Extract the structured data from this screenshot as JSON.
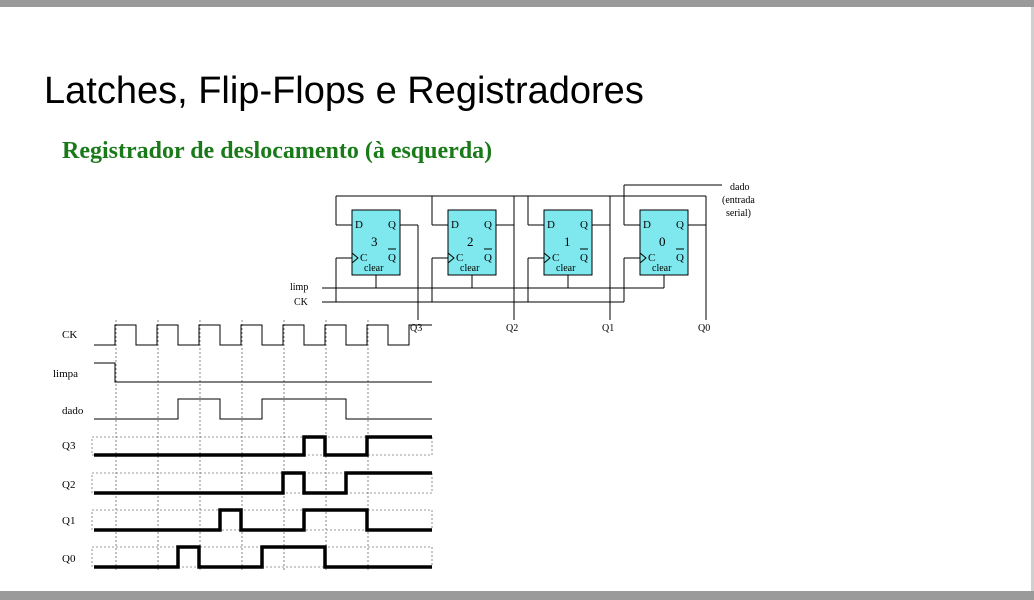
{
  "slide": {
    "title": "Latches, Flip-Flops e Registradores",
    "subtitle": "Registrador de deslocamento (à esquerda)"
  },
  "circuit": {
    "flipflops": [
      {
        "index": "3",
        "d": "D",
        "q": "Q",
        "c": "C",
        "qbar": "Q",
        "clear": "clear",
        "output": "Q3"
      },
      {
        "index": "2",
        "d": "D",
        "q": "Q",
        "c": "C",
        "qbar": "Q",
        "clear": "clear",
        "output": "Q2"
      },
      {
        "index": "1",
        "d": "D",
        "q": "Q",
        "c": "C",
        "qbar": "Q",
        "clear": "clear",
        "output": "Q1"
      },
      {
        "index": "0",
        "d": "D",
        "q": "Q",
        "c": "C",
        "qbar": "Q",
        "clear": "clear",
        "output": "Q0"
      }
    ],
    "input_label_line1": "dado",
    "input_label_line2": "(entrada",
    "input_label_line3": "serial)",
    "clear_input": "limp",
    "clock_input": "CK",
    "ff_fill_color": "#7fe8ee"
  },
  "timing": {
    "signals": [
      {
        "name": "CK",
        "levels": [
          0,
          1,
          0,
          1,
          0,
          1,
          0,
          1,
          0,
          1,
          0,
          1,
          0,
          1,
          0,
          1
        ]
      },
      {
        "name": "limpa",
        "levels": [
          1,
          0,
          0,
          0,
          0,
          0,
          0,
          0,
          0,
          0,
          0,
          0,
          0,
          0,
          0,
          0
        ]
      },
      {
        "name": "dado",
        "levels": [
          0,
          0,
          0,
          0,
          1,
          1,
          0,
          0,
          1,
          1,
          1,
          1,
          0,
          0,
          0,
          0
        ]
      },
      {
        "name": "Q3",
        "levels": [
          0,
          0,
          0,
          0,
          0,
          0,
          0,
          0,
          0,
          0,
          1,
          0,
          0,
          1,
          1,
          1
        ]
      },
      {
        "name": "Q2",
        "levels": [
          0,
          0,
          0,
          0,
          0,
          0,
          0,
          0,
          0,
          1,
          0,
          0,
          1,
          1,
          1,
          1
        ]
      },
      {
        "name": "Q1",
        "levels": [
          0,
          0,
          0,
          0,
          0,
          0,
          1,
          0,
          0,
          0,
          1,
          1,
          1,
          0,
          0,
          0
        ]
      },
      {
        "name": "Q0",
        "levels": [
          0,
          0,
          0,
          0,
          1,
          0,
          0,
          0,
          1,
          1,
          1,
          0,
          0,
          0,
          0,
          0
        ]
      }
    ]
  }
}
